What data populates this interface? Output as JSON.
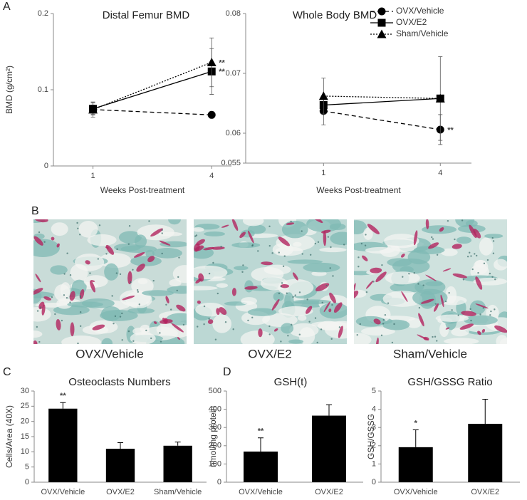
{
  "panel_labels": [
    "A",
    "B",
    "C",
    "D"
  ],
  "histology_captions": [
    "OVX/Vehicle",
    "OVX/E2",
    "Sham/Vehicle"
  ],
  "chart_data": [
    {
      "type": "line",
      "title": "Distal Femur BMD",
      "x_label": "Weeks Post-treatment",
      "y_label": "BMD (g/cm²)",
      "x": [
        1,
        4
      ],
      "xlim": [
        0,
        4.5
      ],
      "xticks": [
        1,
        4
      ],
      "ylim": [
        0,
        0.2
      ],
      "yticks": [
        0,
        0.1,
        0.2
      ],
      "series": [
        {
          "color": "#000000",
          "dash": "dashed",
          "marker": "circle",
          "values": [
            0.074,
            0.067
          ],
          "errors": [
            0.006,
            null
          ],
          "annotations": [
            null,
            null
          ]
        },
        {
          "color": "#000000",
          "dash": "solid",
          "marker": "square",
          "values": [
            0.075,
            0.124
          ],
          "errors": [
            0.008,
            0.03
          ],
          "annotations": [
            null,
            "**"
          ]
        },
        {
          "color": "#000000",
          "dash": "dotted",
          "marker": "triangle",
          "values": [
            0.074,
            0.136
          ],
          "errors": [
            0.01,
            0.032
          ],
          "annotations": [
            null,
            "**"
          ]
        }
      ]
    },
    {
      "type": "line",
      "title": "Whole Body BMD",
      "x_label": "Weeks Post-treatment",
      "legend": "upper right",
      "x": [
        1,
        4
      ],
      "xlim": [
        -1,
        4.8
      ],
      "xticks": [
        1,
        4
      ],
      "ylim": [
        0.055,
        0.08
      ],
      "yticks": [
        0.055,
        0.06,
        0.07,
        0.08
      ],
      "series": [
        {
          "name": "OVX/Vehicle",
          "color": "#000000",
          "dash": "dashed",
          "marker": "circle",
          "values": [
            0.0637,
            0.0606
          ],
          "errors": [
            0.0023,
            0.0025
          ],
          "annotations": [
            null,
            "**"
          ]
        },
        {
          "name": "OVX/E2",
          "color": "#000000",
          "dash": "solid",
          "marker": "square",
          "values": [
            0.0647,
            0.0658
          ],
          "errors": [
            null,
            0.007
          ],
          "annotations": [
            null,
            null
          ]
        },
        {
          "name": "Sham/Vehicle",
          "color": "#000000",
          "dash": "dotted",
          "marker": "triangle",
          "values": [
            0.0662,
            0.0658
          ],
          "errors": [
            0.003,
            null
          ],
          "annotations": [
            null,
            null
          ]
        }
      ]
    },
    {
      "type": "bar",
      "title": "Osteoclasts Numbers",
      "y_label": "Cells/Area (40X)",
      "color": "#000000",
      "categories": [
        "OVX/Vehicle",
        "OVX/E2",
        "Sham/Vehicle"
      ],
      "values": [
        24.2,
        11,
        12
      ],
      "errors": [
        2,
        2,
        1.2
      ],
      "annotations": [
        "**",
        null,
        null
      ],
      "ylim": [
        0,
        30
      ],
      "yticks": [
        0,
        5,
        10,
        15,
        20,
        25,
        30
      ]
    },
    {
      "type": "bar",
      "title": "GSH(t)",
      "y_label": "nmol/mg protein",
      "color": "#000000",
      "categories": [
        "OVX/Vehicle",
        "OVX/E2"
      ],
      "values": [
        168,
        365
      ],
      "errors": [
        75,
        60
      ],
      "annotations": [
        "**",
        null
      ],
      "ylim": [
        0,
        500
      ],
      "yticks": [
        0,
        100,
        200,
        300,
        400,
        500
      ]
    },
    {
      "type": "bar",
      "title": "GSH/GSSG Ratio",
      "y_label": "GSH/GSSG",
      "color": "#000000",
      "categories": [
        "OVX/Vehicle",
        "OVX/E2"
      ],
      "values": [
        1.92,
        3.2
      ],
      "errors": [
        0.95,
        1.35
      ],
      "annotations": [
        "*",
        null
      ],
      "ylim": [
        0,
        5
      ],
      "yticks": [
        0,
        1,
        2,
        3,
        4,
        5
      ]
    }
  ]
}
